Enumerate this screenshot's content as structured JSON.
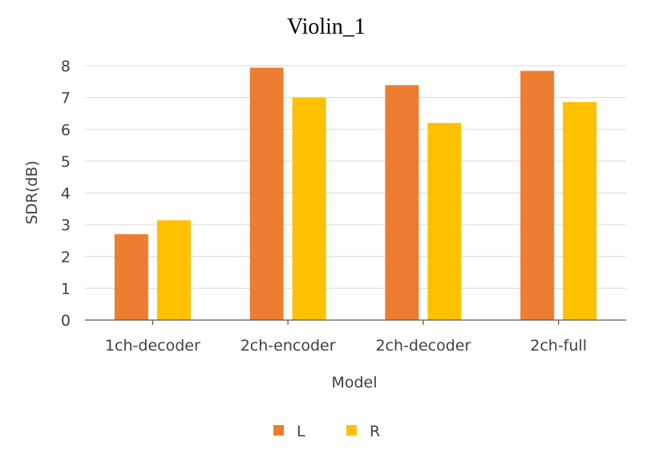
{
  "chart_data": {
    "type": "bar",
    "title": "Violin_1",
    "xlabel": "Model",
    "ylabel": "SDR(dB)",
    "categories": [
      "1ch-decoder",
      "2ch-encoder",
      "2ch-decoder",
      "2ch-full"
    ],
    "series": [
      {
        "name": "L",
        "values": [
          2.7,
          7.94,
          7.39,
          7.84
        ],
        "color": "#ED7D31"
      },
      {
        "name": "R",
        "values": [
          3.14,
          7.0,
          6.2,
          6.86
        ],
        "color": "#FFC000"
      }
    ],
    "ylim": [
      0,
      8
    ],
    "yticks": [
      "0",
      "1",
      "2",
      "3",
      "4",
      "5",
      "6",
      "7",
      "8"
    ],
    "grid": true,
    "legend_position": "bottom"
  }
}
